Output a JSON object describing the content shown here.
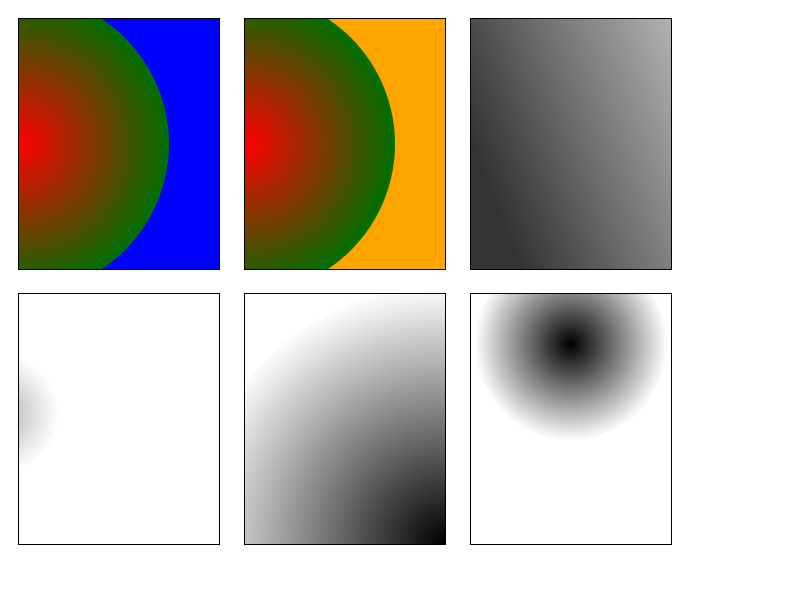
{
  "panels": [
    {
      "id": "p1",
      "kind": "radial",
      "colors": {
        "background": "#0000ff",
        "center": "#ff0000",
        "edge": "#007000"
      }
    },
    {
      "id": "p2",
      "kind": "radial",
      "colors": {
        "background": "#ffa500",
        "center": "#ff0000",
        "edge": "#007000"
      }
    },
    {
      "id": "p3",
      "kind": "linear",
      "colors": {
        "start": "#333333",
        "end": "#c0c0c0"
      }
    },
    {
      "id": "p4",
      "kind": "radial",
      "colors": {
        "background": "#ffffff",
        "center": "#b0b0b0",
        "edge": "#ffffff"
      }
    },
    {
      "id": "p5",
      "kind": "radial",
      "colors": {
        "background": "#ffffff",
        "center": "#000000",
        "edge": "#ffffff"
      }
    },
    {
      "id": "p6",
      "kind": "radial",
      "colors": {
        "background": "#ffffff",
        "center": "#000000",
        "edge": "#ffffff"
      }
    }
  ]
}
